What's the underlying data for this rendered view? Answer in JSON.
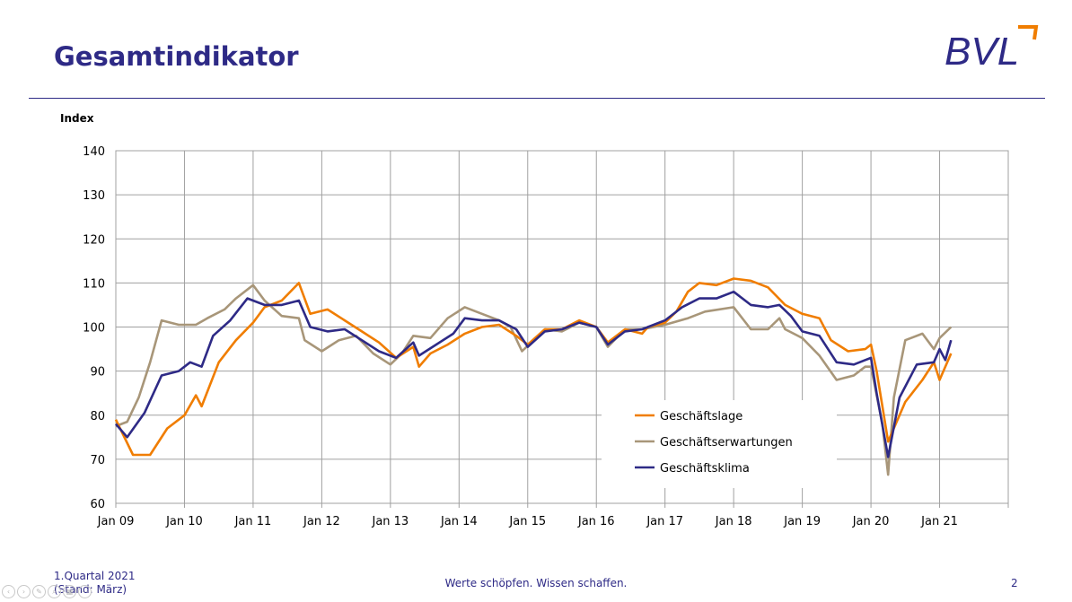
{
  "slide": {
    "title": "Gesamtindikator",
    "logo_text": "BVL",
    "footer_left_line1": "1.Quartal 2021",
    "footer_left_line2": "(Stand: März)",
    "footer_center": "Werte schöpfen. Wissen schaffen.",
    "page_number": "2"
  },
  "colors": {
    "brand": "#2e2a86",
    "accent": "#f07d00",
    "Geschäftslage": "#f07d00",
    "Geschäftserwartungen": "#a89679",
    "Geschäftsklima": "#2e2a86"
  },
  "chart_data": {
    "type": "line",
    "title": "",
    "ylabel": "Index",
    "xlabel": "",
    "ylim": [
      60,
      140
    ],
    "yticks": [
      60,
      70,
      80,
      90,
      100,
      110,
      120,
      130,
      140
    ],
    "x_tick_labels": [
      "Jan 09",
      "Jan 10",
      "Jan 11",
      "Jan 12",
      "Jan 13",
      "Jan 14",
      "Jan 15",
      "Jan 16",
      "Jan 17",
      "Jan 18",
      "Jan 19",
      "Jan 20",
      "Jan 21"
    ],
    "x_start": "2009-01",
    "x_end": "2022-01",
    "grid": true,
    "legend_position": "bottom-right",
    "series": [
      {
        "name": "Geschäftslage",
        "color": "#f07d00",
        "points": [
          [
            "2009-01",
            79
          ],
          [
            "2009-04",
            71
          ],
          [
            "2009-07",
            71
          ],
          [
            "2009-10",
            77
          ],
          [
            "2010-01",
            80
          ],
          [
            "2010-03",
            84.5
          ],
          [
            "2010-04",
            82
          ],
          [
            "2010-07",
            92
          ],
          [
            "2010-10",
            97
          ],
          [
            "2011-01",
            101
          ],
          [
            "2011-03",
            104.5
          ],
          [
            "2011-06",
            106
          ],
          [
            "2011-09",
            110
          ],
          [
            "2011-11",
            103
          ],
          [
            "2012-02",
            104
          ],
          [
            "2012-05",
            101.5
          ],
          [
            "2012-08",
            99
          ],
          [
            "2012-11",
            96.5
          ],
          [
            "2013-02",
            93
          ],
          [
            "2013-05",
            95.5
          ],
          [
            "2013-06",
            91
          ],
          [
            "2013-08",
            94
          ],
          [
            "2013-11",
            96
          ],
          [
            "2014-02",
            98.5
          ],
          [
            "2014-05",
            100
          ],
          [
            "2014-08",
            100.5
          ],
          [
            "2014-11",
            98
          ],
          [
            "2015-01",
            96
          ],
          [
            "2015-04",
            99.5
          ],
          [
            "2015-07",
            99.5
          ],
          [
            "2015-10",
            101.5
          ],
          [
            "2016-01",
            100
          ],
          [
            "2016-03",
            96.5
          ],
          [
            "2016-06",
            99.5
          ],
          [
            "2016-09",
            98.5
          ],
          [
            "2016-10",
            100
          ],
          [
            "2017-01",
            101
          ],
          [
            "2017-03",
            103.5
          ],
          [
            "2017-05",
            108
          ],
          [
            "2017-07",
            110
          ],
          [
            "2017-10",
            109.5
          ],
          [
            "2018-01",
            111
          ],
          [
            "2018-04",
            110.5
          ],
          [
            "2018-07",
            109
          ],
          [
            "2018-10",
            105
          ],
          [
            "2019-01",
            103
          ],
          [
            "2019-04",
            102
          ],
          [
            "2019-06",
            97
          ],
          [
            "2019-09",
            94.5
          ],
          [
            "2019-12",
            95
          ],
          [
            "2020-01",
            96
          ],
          [
            "2020-02",
            90
          ],
          [
            "2020-04",
            74
          ],
          [
            "2020-07",
            83
          ],
          [
            "2020-10",
            88
          ],
          [
            "2020-12",
            92
          ],
          [
            "2021-01",
            88
          ],
          [
            "2021-03",
            94
          ]
        ]
      },
      {
        "name": "Geschäftserwartungen",
        "color": "#a89679",
        "points": [
          [
            "2009-01",
            77.5
          ],
          [
            "2009-03",
            78.5
          ],
          [
            "2009-05",
            84
          ],
          [
            "2009-07",
            92
          ],
          [
            "2009-09",
            101.5
          ],
          [
            "2009-12",
            100.5
          ],
          [
            "2010-03",
            100.5
          ],
          [
            "2010-05",
            102
          ],
          [
            "2010-08",
            104
          ],
          [
            "2010-10",
            106.5
          ],
          [
            "2011-01",
            109.5
          ],
          [
            "2011-03",
            106
          ],
          [
            "2011-06",
            102.5
          ],
          [
            "2011-09",
            102
          ],
          [
            "2011-10",
            97
          ],
          [
            "2012-01",
            94.5
          ],
          [
            "2012-04",
            97
          ],
          [
            "2012-07",
            98
          ],
          [
            "2012-10",
            94
          ],
          [
            "2013-01",
            91.5
          ],
          [
            "2013-03",
            94
          ],
          [
            "2013-05",
            98
          ],
          [
            "2013-08",
            97.5
          ],
          [
            "2013-11",
            102
          ],
          [
            "2014-02",
            104.5
          ],
          [
            "2014-05",
            103
          ],
          [
            "2014-08",
            101.5
          ],
          [
            "2014-10",
            100
          ],
          [
            "2014-12",
            94.5
          ],
          [
            "2015-04",
            99.5
          ],
          [
            "2015-07",
            99
          ],
          [
            "2015-10",
            101
          ],
          [
            "2016-01",
            100
          ],
          [
            "2016-03",
            95.5
          ],
          [
            "2016-06",
            99.5
          ],
          [
            "2016-09",
            99.5
          ],
          [
            "2017-01",
            100.5
          ],
          [
            "2017-05",
            102
          ],
          [
            "2017-08",
            103.5
          ],
          [
            "2018-01",
            104.5
          ],
          [
            "2018-04",
            99.5
          ],
          [
            "2018-07",
            99.5
          ],
          [
            "2018-09",
            102
          ],
          [
            "2018-10",
            99.5
          ],
          [
            "2019-01",
            97.5
          ],
          [
            "2019-04",
            93.5
          ],
          [
            "2019-07",
            88
          ],
          [
            "2019-10",
            89
          ],
          [
            "2019-12",
            91
          ],
          [
            "2020-01",
            91
          ],
          [
            "2020-03",
            78
          ],
          [
            "2020-04",
            66.5
          ],
          [
            "2020-05",
            84
          ],
          [
            "2020-07",
            97
          ],
          [
            "2020-10",
            98.5
          ],
          [
            "2020-12",
            95
          ],
          [
            "2021-01",
            97.5
          ],
          [
            "2021-03",
            100
          ]
        ]
      },
      {
        "name": "Geschäftsklima",
        "color": "#2e2a86",
        "points": [
          [
            "2009-01",
            78
          ],
          [
            "2009-03",
            75
          ],
          [
            "2009-06",
            80.5
          ],
          [
            "2009-09",
            89
          ],
          [
            "2009-12",
            90
          ],
          [
            "2010-02",
            92
          ],
          [
            "2010-04",
            91
          ],
          [
            "2010-06",
            98
          ],
          [
            "2010-09",
            101.5
          ],
          [
            "2010-12",
            106.5
          ],
          [
            "2011-03",
            105
          ],
          [
            "2011-06",
            105
          ],
          [
            "2011-09",
            106
          ],
          [
            "2011-11",
            100
          ],
          [
            "2012-02",
            99
          ],
          [
            "2012-05",
            99.5
          ],
          [
            "2012-08",
            97
          ],
          [
            "2012-11",
            94.5
          ],
          [
            "2013-02",
            93
          ],
          [
            "2013-05",
            96.5
          ],
          [
            "2013-06",
            93.5
          ],
          [
            "2013-09",
            96
          ],
          [
            "2013-12",
            98.5
          ],
          [
            "2014-02",
            102
          ],
          [
            "2014-05",
            101.5
          ],
          [
            "2014-08",
            101.5
          ],
          [
            "2014-11",
            99.5
          ],
          [
            "2015-01",
            95.5
          ],
          [
            "2015-04",
            99
          ],
          [
            "2015-07",
            99.5
          ],
          [
            "2015-10",
            101
          ],
          [
            "2016-01",
            100
          ],
          [
            "2016-03",
            96
          ],
          [
            "2016-06",
            99
          ],
          [
            "2016-09",
            99.5
          ],
          [
            "2017-01",
            101.5
          ],
          [
            "2017-04",
            104.5
          ],
          [
            "2017-07",
            106.5
          ],
          [
            "2017-10",
            106.5
          ],
          [
            "2018-01",
            108
          ],
          [
            "2018-04",
            105
          ],
          [
            "2018-07",
            104.5
          ],
          [
            "2018-09",
            105
          ],
          [
            "2018-11",
            102.5
          ],
          [
            "2019-01",
            99
          ],
          [
            "2019-04",
            98
          ],
          [
            "2019-07",
            92
          ],
          [
            "2019-10",
            91.5
          ],
          [
            "2019-12",
            92.5
          ],
          [
            "2020-01",
            93
          ],
          [
            "2020-02",
            85
          ],
          [
            "2020-04",
            70.5
          ],
          [
            "2020-06",
            84
          ],
          [
            "2020-09",
            91.5
          ],
          [
            "2020-12",
            92
          ],
          [
            "2021-01",
            95
          ],
          [
            "2021-02",
            92.5
          ],
          [
            "2021-03",
            97
          ]
        ]
      }
    ]
  }
}
